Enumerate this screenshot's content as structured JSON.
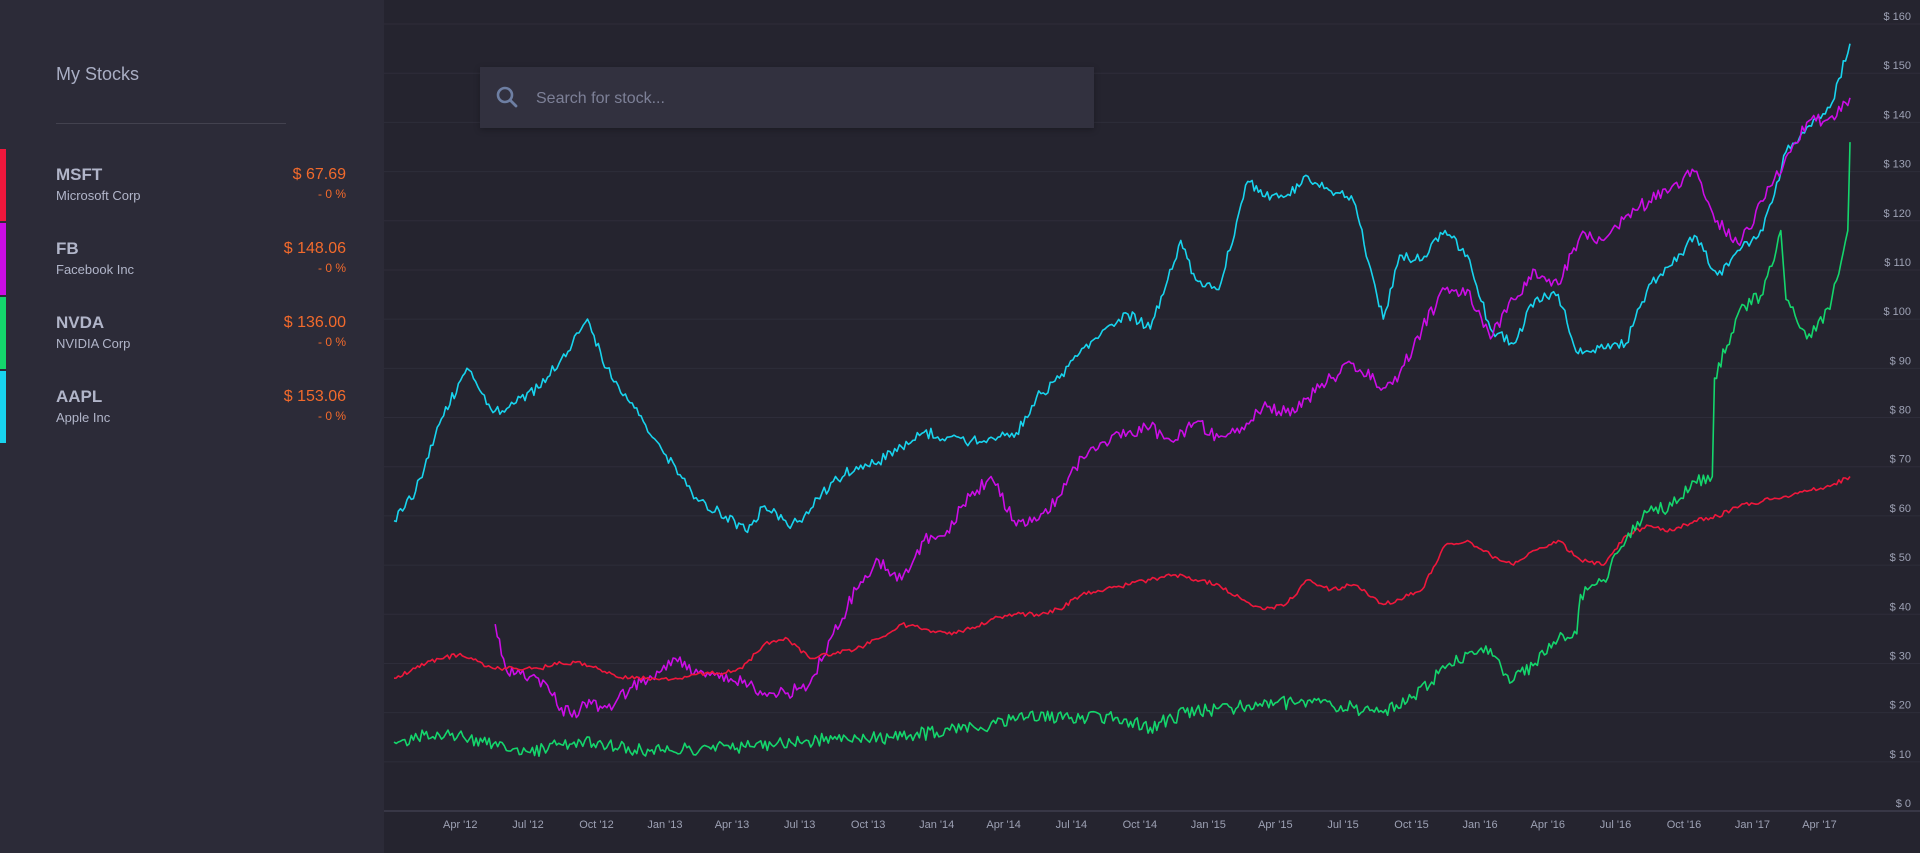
{
  "sidebar": {
    "title": "My Stocks",
    "stocks": [
      {
        "symbol": "MSFT",
        "name": "Microsoft Corp",
        "price": "$ 67.69",
        "change": "- 0 %",
        "color": "#f0173c"
      },
      {
        "symbol": "FB",
        "name": "Facebook Inc",
        "price": "$ 148.06",
        "change": "- 0 %",
        "color": "#cc0de6"
      },
      {
        "symbol": "NVDA",
        "name": "NVIDIA Corp",
        "price": "$ 136.00",
        "change": "- 0 %",
        "color": "#14d66c"
      },
      {
        "symbol": "AAPL",
        "name": "Apple Inc",
        "price": "$ 153.06",
        "change": "- 0 %",
        "color": "#18d4ee"
      }
    ]
  },
  "search": {
    "placeholder": "Search for stock..."
  },
  "icons": {
    "search": "search-icon"
  },
  "chart_data": {
    "type": "line",
    "ylim": [
      0,
      160
    ],
    "yticks": [
      0,
      10,
      20,
      30,
      40,
      50,
      60,
      70,
      80,
      90,
      100,
      110,
      120,
      130,
      140,
      150,
      160
    ],
    "ytick_labels": [
      "$ 0",
      "$ 10",
      "$ 20",
      "$ 30",
      "$ 40",
      "$ 50",
      "$ 60",
      "$ 70",
      "$ 80",
      "$ 90",
      "$ 100",
      "$ 110",
      "$ 120",
      "$ 130",
      "$ 140",
      "$ 150",
      "$ 160"
    ],
    "xlim": [
      "2012-01-03",
      "2017-05-12"
    ],
    "xtick_dates": [
      "2012-04-01",
      "2012-07-01",
      "2012-10-01",
      "2013-01-01",
      "2013-04-01",
      "2013-07-01",
      "2013-10-01",
      "2014-01-01",
      "2014-04-01",
      "2014-07-01",
      "2014-10-01",
      "2015-01-01",
      "2015-04-01",
      "2015-07-01",
      "2015-10-01",
      "2016-01-01",
      "2016-04-01",
      "2016-07-01",
      "2016-10-01",
      "2017-01-01",
      "2017-04-01"
    ],
    "xtick_labels": [
      "Apr '12",
      "Jul '12",
      "Oct '12",
      "Jan '13",
      "Apr '13",
      "Jul '13",
      "Oct '13",
      "Jan '14",
      "Apr '14",
      "Jul '14",
      "Oct '14",
      "Jan '15",
      "Apr '15",
      "Jul '15",
      "Oct '15",
      "Jan '16",
      "Apr '16",
      "Jul '16",
      "Oct '16",
      "Jan '17",
      "Apr '17"
    ],
    "grid": true,
    "series": [
      {
        "name": "AAPL",
        "color": "#18d4ee",
        "x": [
          "2012-01-03",
          "2012-02-01",
          "2012-03-01",
          "2012-04-10",
          "2012-05-15",
          "2012-06-15",
          "2012-07-15",
          "2012-08-15",
          "2012-09-19",
          "2012-10-15",
          "2012-11-15",
          "2012-12-15",
          "2013-01-15",
          "2013-02-15",
          "2013-03-15",
          "2013-04-19",
          "2013-05-15",
          "2013-06-15",
          "2013-07-01",
          "2013-08-15",
          "2013-09-15",
          "2013-10-15",
          "2013-11-15",
          "2013-12-15",
          "2014-01-15",
          "2014-02-15",
          "2014-03-15",
          "2014-04-15",
          "2014-05-15",
          "2014-06-15",
          "2014-07-15",
          "2014-08-15",
          "2014-09-15",
          "2014-10-15",
          "2014-11-25",
          "2014-12-15",
          "2015-01-15",
          "2015-02-23",
          "2015-03-15",
          "2015-04-15",
          "2015-05-15",
          "2015-06-15",
          "2015-07-15",
          "2015-08-24",
          "2015-09-15",
          "2015-10-15",
          "2015-11-15",
          "2015-12-15",
          "2016-01-15",
          "2016-02-15",
          "2016-03-15",
          "2016-04-15",
          "2016-05-12",
          "2016-06-15",
          "2016-07-15",
          "2016-08-15",
          "2016-09-15",
          "2016-10-15",
          "2016-11-15",
          "2016-12-15",
          "2017-01-15",
          "2017-02-15",
          "2017-03-15",
          "2017-04-15",
          "2017-05-12"
        ],
        "y": [
          59,
          65,
          78,
          90,
          81,
          83,
          86,
          92,
          100,
          90,
          83,
          76,
          70,
          63,
          61,
          57,
          62,
          58,
          59,
          67,
          70,
          71,
          74,
          77,
          76,
          75,
          76,
          76,
          84,
          88,
          94,
          98,
          101,
          98,
          116,
          108,
          106,
          128,
          125,
          125,
          129,
          126,
          124,
          100,
          113,
          112,
          118,
          113,
          98,
          95,
          104,
          105,
          93,
          94,
          95,
          107,
          111,
          117,
          109,
          114,
          118,
          134,
          139,
          143,
          156
        ]
      },
      {
        "name": "FB",
        "color": "#cc0de6",
        "x": [
          "2012-05-18",
          "2012-06-01",
          "2012-06-15",
          "2012-07-15",
          "2012-08-15",
          "2012-09-04",
          "2012-09-15",
          "2012-10-15",
          "2012-11-15",
          "2012-12-15",
          "2013-01-15",
          "2013-02-15",
          "2013-03-15",
          "2013-04-15",
          "2013-05-15",
          "2013-06-15",
          "2013-07-15",
          "2013-08-15",
          "2013-09-15",
          "2013-10-15",
          "2013-11-15",
          "2013-12-15",
          "2014-01-15",
          "2014-02-15",
          "2014-03-15",
          "2014-04-15",
          "2014-05-15",
          "2014-06-15",
          "2014-07-15",
          "2014-08-15",
          "2014-09-15",
          "2014-10-15",
          "2014-11-15",
          "2014-12-15",
          "2015-01-15",
          "2015-02-15",
          "2015-03-15",
          "2015-04-15",
          "2015-05-15",
          "2015-06-15",
          "2015-07-15",
          "2015-08-24",
          "2015-09-15",
          "2015-10-15",
          "2015-11-15",
          "2015-12-15",
          "2016-01-15",
          "2016-02-15",
          "2016-03-15",
          "2016-04-15",
          "2016-05-15",
          "2016-06-15",
          "2016-07-15",
          "2016-08-15",
          "2016-09-15",
          "2016-10-15",
          "2016-11-15",
          "2016-12-15",
          "2017-01-15",
          "2017-02-15",
          "2017-03-15",
          "2017-04-15",
          "2017-05-12"
        ],
        "y": [
          38,
          29,
          28,
          27,
          21,
          19,
          22,
          21,
          25,
          27,
          31,
          28,
          27,
          26,
          24,
          24,
          26,
          36,
          45,
          51,
          47,
          55,
          57,
          64,
          68,
          59,
          59,
          64,
          72,
          75,
          77,
          78,
          75,
          79,
          76,
          78,
          82,
          81,
          84,
          88,
          91,
          86,
          89,
          98,
          106,
          106,
          96,
          104,
          110,
          107,
          117,
          116,
          121,
          124,
          127,
          130,
          120,
          115,
          124,
          133,
          140,
          141,
          145
        ]
      },
      {
        "name": "MSFT",
        "color": "#f0173c",
        "x": [
          "2012-01-03",
          "2012-02-15",
          "2012-04-01",
          "2012-05-15",
          "2012-06-15",
          "2012-07-15",
          "2012-08-15",
          "2012-09-15",
          "2012-10-15",
          "2012-11-15",
          "2012-12-15",
          "2013-01-15",
          "2013-02-15",
          "2013-03-15",
          "2013-04-15",
          "2013-05-15",
          "2013-06-15",
          "2013-07-15",
          "2013-08-15",
          "2013-09-15",
          "2013-10-15",
          "2013-11-15",
          "2013-12-15",
          "2014-01-15",
          "2014-02-15",
          "2014-03-15",
          "2014-04-15",
          "2014-05-15",
          "2014-06-15",
          "2014-07-15",
          "2014-08-15",
          "2014-09-15",
          "2014-10-15",
          "2014-11-15",
          "2014-12-15",
          "2015-01-15",
          "2015-02-15",
          "2015-03-15",
          "2015-04-15",
          "2015-05-15",
          "2015-06-15",
          "2015-07-15",
          "2015-08-24",
          "2015-09-15",
          "2015-10-15",
          "2015-11-15",
          "2015-12-15",
          "2016-01-15",
          "2016-02-15",
          "2016-03-15",
          "2016-04-15",
          "2016-05-15",
          "2016-06-15",
          "2016-07-15",
          "2016-08-15",
          "2016-09-15",
          "2016-10-15",
          "2016-11-15",
          "2016-12-15",
          "2017-01-15",
          "2017-02-15",
          "2017-03-15",
          "2017-04-15",
          "2017-05-12"
        ],
        "y": [
          27,
          30,
          32,
          29,
          29,
          29,
          30,
          30,
          28,
          27,
          27,
          27,
          28,
          28,
          29,
          34,
          35,
          31,
          32,
          33,
          35,
          38,
          37,
          36,
          37,
          39,
          40,
          40,
          41,
          44,
          45,
          46,
          47,
          48,
          47,
          46,
          43,
          41,
          42,
          47,
          45,
          46,
          42,
          43,
          45,
          54,
          55,
          52,
          50,
          53,
          55,
          51,
          50,
          56,
          58,
          57,
          59,
          60,
          62,
          63,
          64,
          65,
          66,
          68
        ]
      },
      {
        "name": "NVDA",
        "color": "#14d66c",
        "x": [
          "2012-01-03",
          "2012-03-01",
          "2012-05-01",
          "2012-07-01",
          "2012-09-01",
          "2012-11-01",
          "2013-01-01",
          "2013-03-01",
          "2013-05-01",
          "2013-07-01",
          "2013-09-01",
          "2013-11-01",
          "2014-01-01",
          "2014-03-01",
          "2014-05-01",
          "2014-07-01",
          "2014-09-01",
          "2014-10-15",
          "2014-12-01",
          "2015-02-01",
          "2015-04-01",
          "2015-06-01",
          "2015-08-24",
          "2015-10-01",
          "2015-11-15",
          "2015-12-15",
          "2016-01-15",
          "2016-02-10",
          "2016-03-15",
          "2016-04-15",
          "2016-05-10",
          "2016-05-15",
          "2016-06-15",
          "2016-07-15",
          "2016-08-15",
          "2016-09-15",
          "2016-10-15",
          "2016-11-08",
          "2016-11-11",
          "2016-12-15",
          "2017-01-15",
          "2017-02-08",
          "2017-02-15",
          "2017-03-15",
          "2017-04-15",
          "2017-05-09",
          "2017-05-12"
        ],
        "y": [
          14,
          16,
          14,
          12,
          14,
          13,
          12,
          13,
          13,
          14,
          15,
          15,
          16,
          17,
          19,
          19,
          19,
          17,
          20,
          21,
          22,
          22,
          20,
          23,
          29,
          32,
          33,
          26,
          30,
          35,
          36,
          44,
          47,
          55,
          61,
          62,
          67,
          68,
          88,
          102,
          105,
          118,
          104,
          96,
          102,
          118,
          136
        ]
      }
    ]
  }
}
